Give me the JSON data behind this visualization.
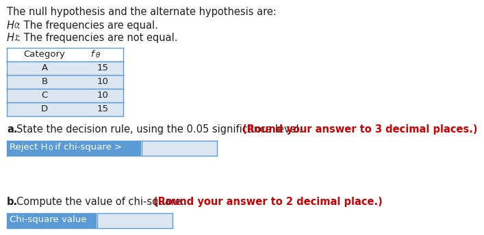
{
  "title_line": "The null hypothesis and the alternate hypothesis are:",
  "h0_desc": ": The frequencies are equal.",
  "h1_desc": ": The frequencies are not equal.",
  "table_rows": [
    [
      "A",
      "15"
    ],
    [
      "B",
      "10"
    ],
    [
      "C",
      "10"
    ],
    [
      "D",
      "15"
    ]
  ],
  "part_a_normal": "State the decision rule, using the 0.05 significance level. ",
  "part_a_bold_red": "(Round your answer to 3 decimal places.)",
  "part_b_normal": "Compute the value of chi-square. ",
  "part_b_bold_red": "(Round your answer to 2 decimal place.)",
  "button_a_text": "Reject H₀ if chi-square >",
  "button_b_text": "Chi-square value",
  "bg_color": "#ffffff",
  "text_color": "#1f1f1f",
  "red_color": "#cc0000",
  "blue_btn": "#5b9bd5",
  "input_box": "#dce6f1",
  "table_row_bg": "#dce6f1",
  "table_header_bg": "#ffffff",
  "table_border": "#5b9bd5",
  "fs": 10.5
}
